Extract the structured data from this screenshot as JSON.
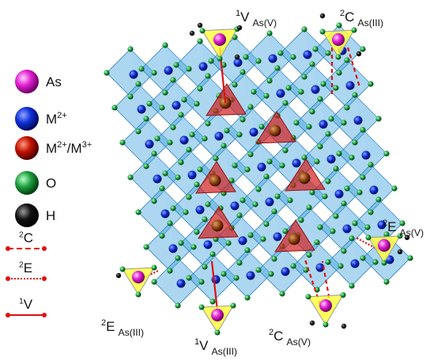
{
  "legend": {
    "items": [
      {
        "label": [
          {
            "text": "As"
          }
        ]
      },
      {
        "label": [
          {
            "text": "M"
          },
          {
            "sup": "2+"
          }
        ]
      },
      {
        "label": [
          {
            "text": "M"
          },
          {
            "sup": "2+"
          },
          {
            "text": "/M"
          },
          {
            "sup": "3+"
          }
        ]
      },
      {
        "label": [
          {
            "text": "O"
          }
        ]
      },
      {
        "label": [
          {
            "text": "H"
          }
        ]
      }
    ],
    "lines": [
      {
        "label": [
          {
            "sup": "2"
          },
          {
            "text": "C"
          }
        ]
      },
      {
        "label": [
          {
            "sup": "2"
          },
          {
            "text": "E"
          }
        ]
      },
      {
        "label": [
          {
            "sup": "1"
          },
          {
            "text": "V"
          }
        ]
      }
    ]
  },
  "annotations": [
    {
      "label": [
        {
          "sup": "1"
        },
        {
          "text": "V"
        },
        {
          "sub": "As(V)"
        }
      ]
    },
    {
      "label": [
        {
          "sup": "2"
        },
        {
          "text": "C"
        },
        {
          "sub": "As(III)"
        }
      ]
    },
    {
      "label": [
        {
          "sup": "2"
        },
        {
          "text": "E"
        },
        {
          "sub": "As(V)"
        }
      ]
    },
    {
      "label": [
        {
          "sup": "2"
        },
        {
          "text": "C"
        },
        {
          "sub": "As(V)"
        }
      ]
    },
    {
      "label": [
        {
          "sup": "1"
        },
        {
          "text": "V"
        },
        {
          "sub": "As(III)"
        }
      ]
    },
    {
      "label": [
        {
          "sup": "2"
        },
        {
          "text": "E"
        },
        {
          "sub": "As(III)"
        }
      ]
    }
  ]
}
